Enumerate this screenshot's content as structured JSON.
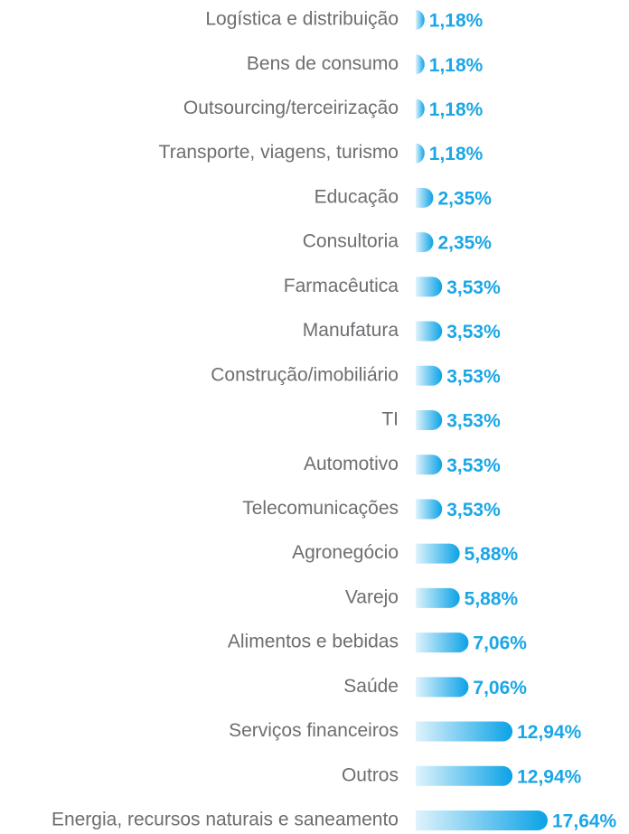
{
  "chart_data": {
    "type": "barh",
    "categories": [
      "Logística e distribuição",
      "Bens de consumo",
      "Outsourcing/terceirização",
      "Transporte, viagens, turismo",
      "Educação",
      "Consultoria",
      "Farmacêutica",
      "Manufatura",
      "Construção/imobiliário",
      "TI",
      "Automotivo",
      "Telecomunicações",
      "Agronegócio",
      "Varejo",
      "Alimentos e bebidas",
      "Saúde",
      "Serviços financeiros",
      "Outros",
      "Energia, recursos naturais e saneamento"
    ],
    "values": [
      1.18,
      1.18,
      1.18,
      1.18,
      2.35,
      2.35,
      3.53,
      3.53,
      3.53,
      3.53,
      3.53,
      3.53,
      5.88,
      5.88,
      7.06,
      7.06,
      12.94,
      12.94,
      17.64
    ],
    "value_labels": [
      "1,18%",
      "1,18%",
      "1,18%",
      "1,18%",
      "2,35%",
      "2,35%",
      "3,53%",
      "3,53%",
      "3,53%",
      "3,53%",
      "3,53%",
      "3,53%",
      "5,88%",
      "5,88%",
      "7,06%",
      "7,06%",
      "12,94%",
      "12,94%",
      "17,64%"
    ],
    "color": "#0aa2e6"
  }
}
